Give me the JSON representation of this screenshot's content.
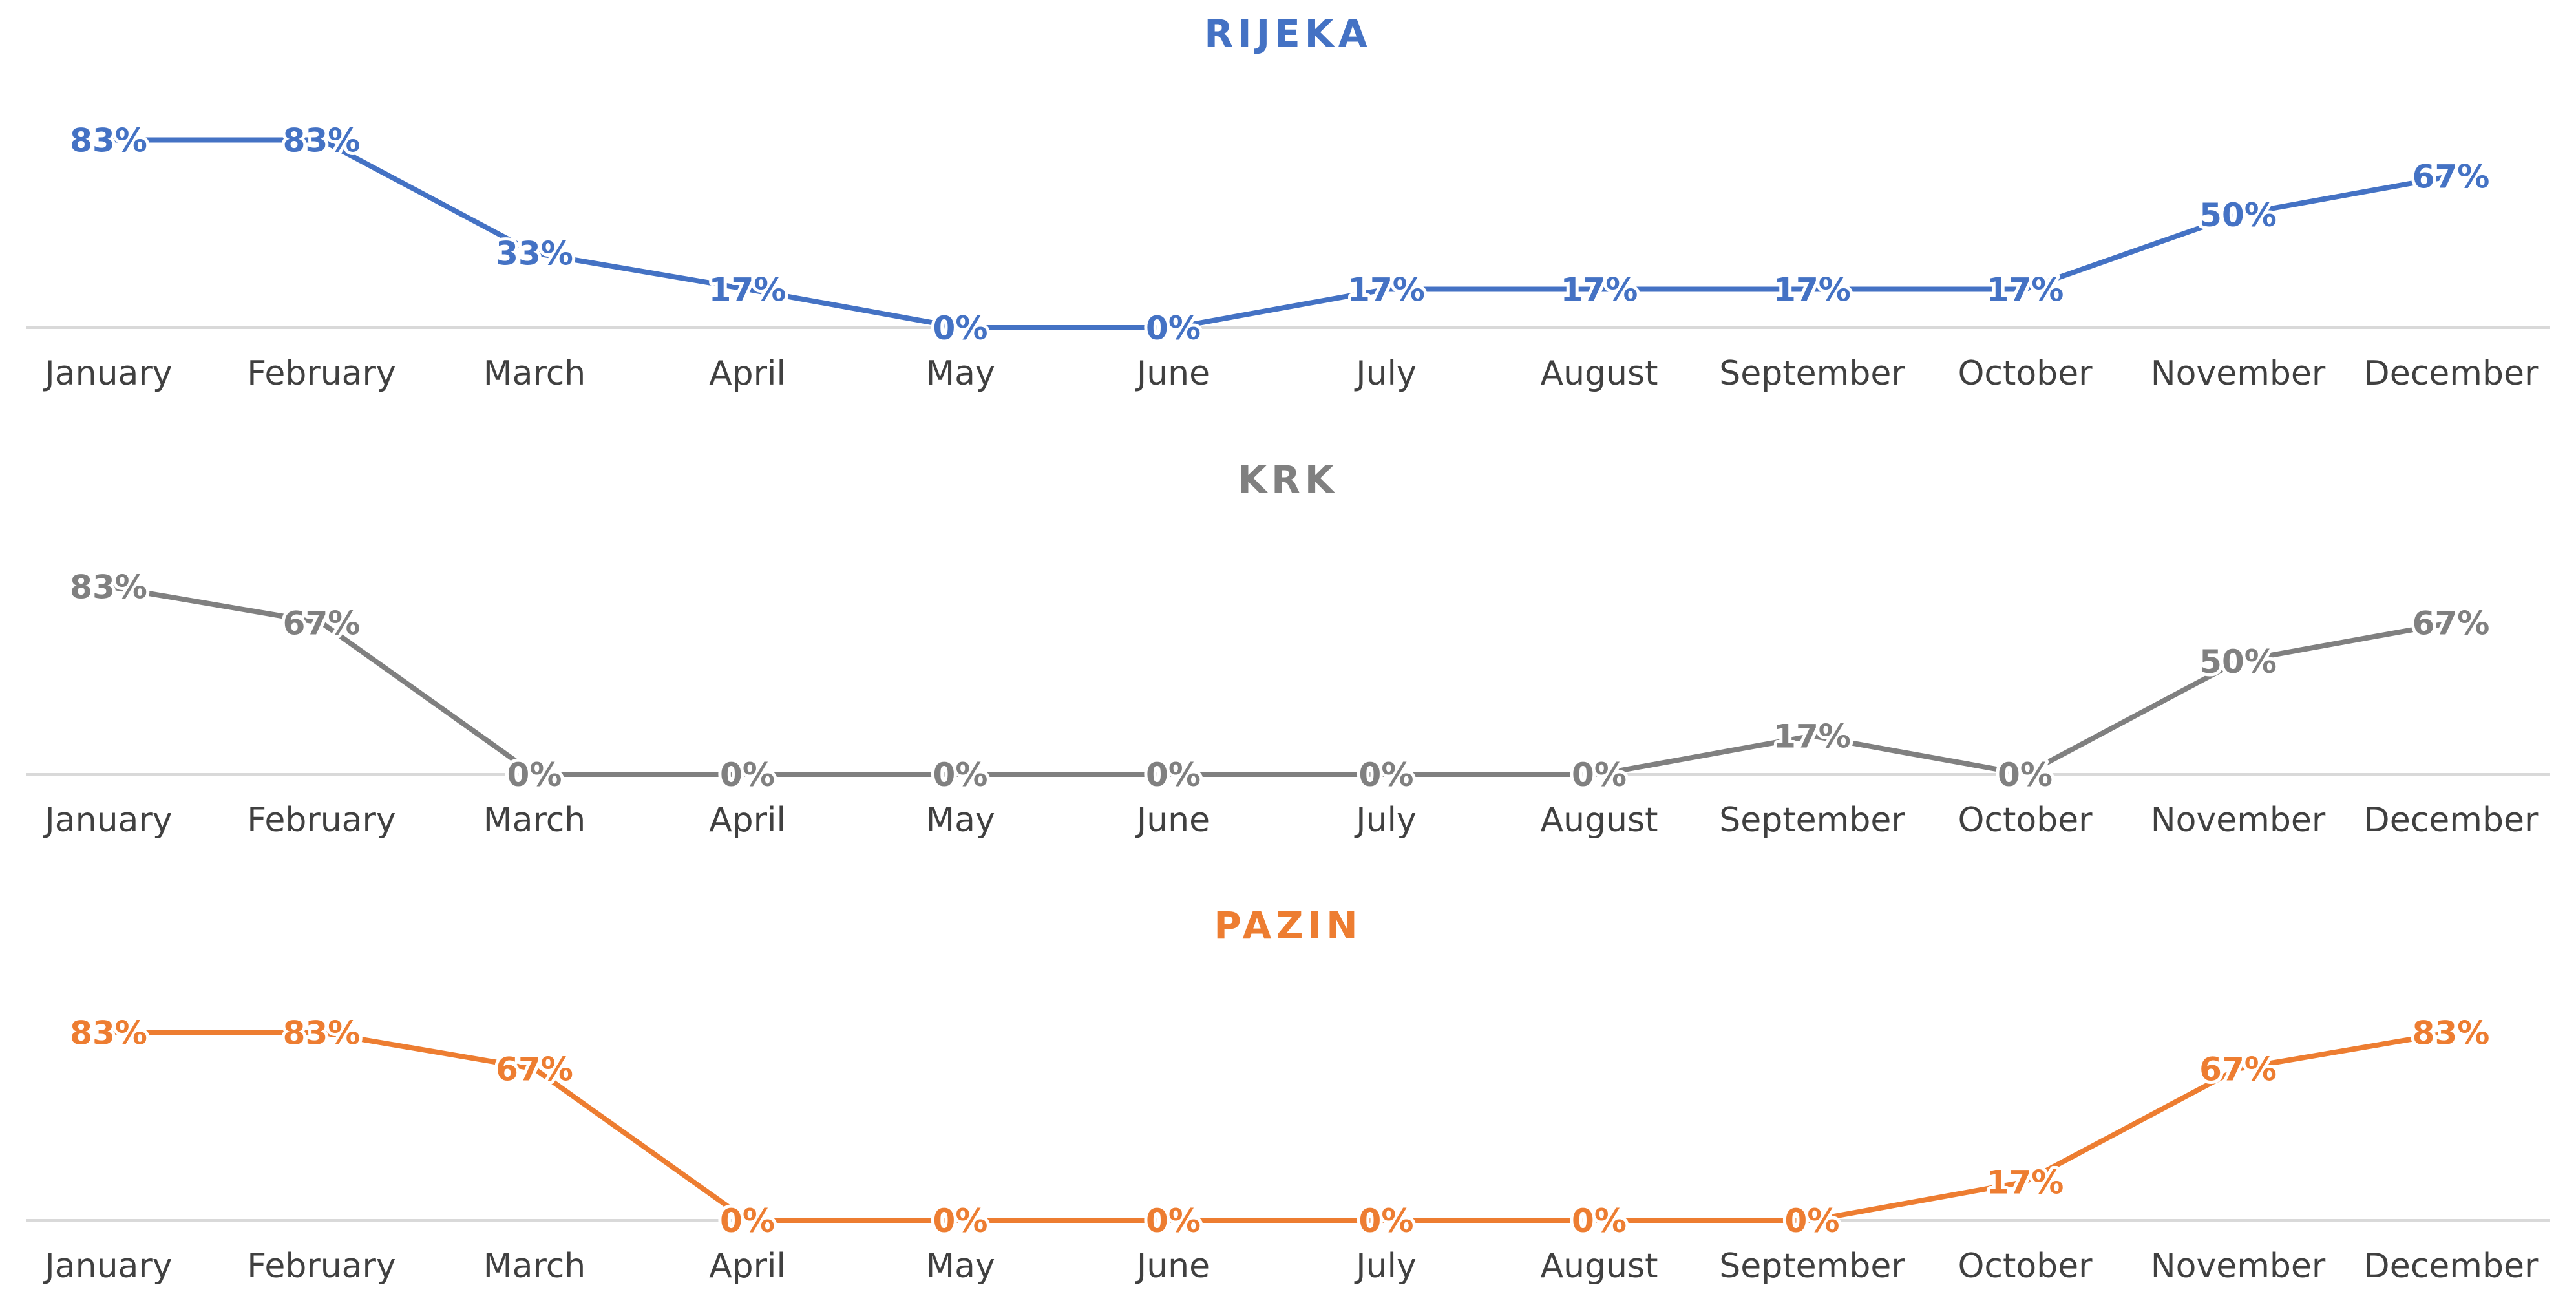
{
  "chart_data": [
    {
      "type": "line",
      "title": "RIJEKA",
      "color": "#4472c4",
      "categories": [
        "January",
        "February",
        "March",
        "April",
        "May",
        "June",
        "July",
        "August",
        "September",
        "October",
        "November",
        "December"
      ],
      "values": [
        83,
        83,
        33,
        17,
        0,
        0,
        17,
        17,
        17,
        17,
        50,
        67
      ],
      "data_labels": [
        "83%",
        "83%",
        "33%",
        "17%",
        "0%",
        "0%",
        "17%",
        "17%",
        "17%",
        "17%",
        "50%",
        "67%"
      ],
      "unit": "%",
      "ylim": [
        0,
        100
      ],
      "grid": false,
      "legend": "none"
    },
    {
      "type": "line",
      "title": "KRK",
      "color": "#808080",
      "categories": [
        "January",
        "February",
        "March",
        "April",
        "May",
        "June",
        "July",
        "August",
        "September",
        "October",
        "November",
        "December"
      ],
      "values": [
        83,
        67,
        0,
        0,
        0,
        0,
        0,
        0,
        17,
        0,
        50,
        67
      ],
      "data_labels": [
        "83%",
        "67%",
        "0%",
        "0%",
        "0%",
        "0%",
        "0%",
        "0%",
        "17%",
        "0%",
        "50%",
        "67%"
      ],
      "unit": "%",
      "ylim": [
        0,
        100
      ],
      "grid": false,
      "legend": "none"
    },
    {
      "type": "line",
      "title": "PAZIN",
      "color": "#ed7d31",
      "categories": [
        "January",
        "February",
        "March",
        "April",
        "May",
        "June",
        "July",
        "August",
        "September",
        "October",
        "November",
        "December"
      ],
      "values": [
        83,
        83,
        67,
        0,
        0,
        0,
        0,
        0,
        0,
        17,
        67,
        83
      ],
      "data_labels": [
        "83%",
        "83%",
        "67%",
        "0%",
        "0%",
        "0%",
        "0%",
        "0%",
        "0%",
        "17%",
        "67%",
        "83%"
      ],
      "unit": "%",
      "ylim": [
        0,
        100
      ],
      "grid": false,
      "legend": "none"
    }
  ]
}
